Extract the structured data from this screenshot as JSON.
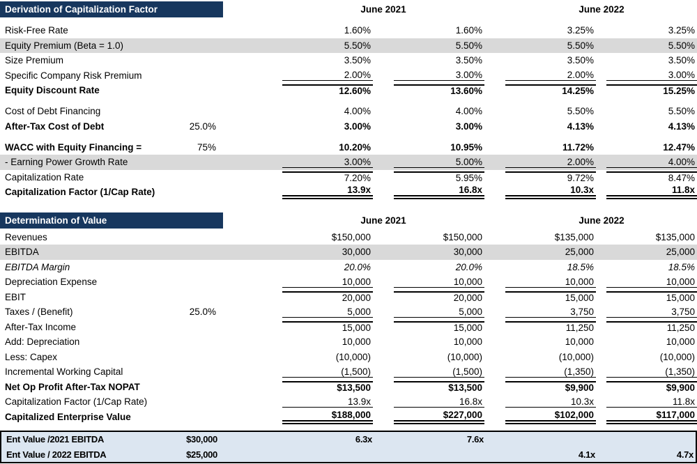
{
  "colors": {
    "title_bar_bg": "#17375E",
    "title_bar_text": "#FFFFFF",
    "row_shade": "#D9D9D9",
    "summary_bg": "#DCE6F1",
    "summary_border": "#000000",
    "text": "#000000"
  },
  "periods": [
    "June 2021",
    "June 2022"
  ],
  "table1": {
    "title": "Derivation of Capitalization Factor",
    "rows": [
      {
        "label": "Risk-Free Rate",
        "sub": "",
        "values": [
          "1.60%",
          "1.60%",
          "3.25%",
          "3.25%"
        ]
      },
      {
        "label": "Equity Premium (Beta = 1.0)",
        "sub": "",
        "shade": true,
        "values": [
          "5.50%",
          "5.50%",
          "5.50%",
          "5.50%"
        ]
      },
      {
        "label": "Size Premium",
        "sub": "",
        "values": [
          "3.50%",
          "3.50%",
          "3.50%",
          "3.50%"
        ]
      },
      {
        "label": "Specific Company Risk Premium",
        "sub": "",
        "line": "ul",
        "values": [
          "2.00%",
          "3.00%",
          "2.00%",
          "3.00%"
        ]
      },
      {
        "label": "Equity Discount Rate",
        "sub": "",
        "bold": true,
        "line": "tl",
        "values": [
          "12.60%",
          "13.60%",
          "14.25%",
          "15.25%"
        ]
      },
      {
        "gap": true
      },
      {
        "label": "Cost of Debt Financing",
        "sub": "",
        "values": [
          "4.00%",
          "4.00%",
          "5.50%",
          "5.50%"
        ]
      },
      {
        "label": "After-Tax Cost of Debt",
        "sub": "25.0%",
        "bold": true,
        "values": [
          "3.00%",
          "3.00%",
          "4.13%",
          "4.13%"
        ]
      },
      {
        "gap": true
      },
      {
        "label": "WACC with Equity Financing =",
        "sub": "75%",
        "bold": true,
        "values": [
          "10.20%",
          "10.95%",
          "11.72%",
          "12.47%"
        ]
      },
      {
        "label": "- Earning Power Growth Rate",
        "sub": "",
        "shade": true,
        "line": "ul",
        "values": [
          "3.00%",
          "5.00%",
          "2.00%",
          "4.00%"
        ]
      },
      {
        "label": "Capitalization Rate",
        "sub": "",
        "line": "tl",
        "values": [
          "7.20%",
          "5.95%",
          "9.72%",
          "8.47%"
        ]
      },
      {
        "label": "Capitalization Factor (1/Cap Rate)",
        "sub": "",
        "bold": true,
        "line": "dbl",
        "values": [
          "13.9x",
          "16.8x",
          "10.3x",
          "11.8x"
        ]
      }
    ]
  },
  "table2": {
    "title": "Determination of Value",
    "rows": [
      {
        "label": "Revenues",
        "sub": "",
        "values": [
          "$150,000",
          "$150,000",
          "$135,000",
          "$135,000"
        ]
      },
      {
        "label": "EBITDA",
        "sub": "",
        "shade": true,
        "values": [
          "30,000",
          "30,000",
          "25,000",
          "25,000"
        ]
      },
      {
        "label": "EBITDA Margin",
        "sub": "",
        "italic": true,
        "values": [
          "20.0%",
          "20.0%",
          "18.5%",
          "18.5%"
        ]
      },
      {
        "label": "Depreciation Expense",
        "sub": "",
        "line": "ul",
        "values": [
          "10,000",
          "10,000",
          "10,000",
          "10,000"
        ]
      },
      {
        "label": "EBIT",
        "sub": "",
        "line": "tl",
        "values": [
          "20,000",
          "20,000",
          "15,000",
          "15,000"
        ]
      },
      {
        "label": "Taxes / (Benefit)",
        "sub": "25.0%",
        "line": "ul",
        "values": [
          "5,000",
          "5,000",
          "3,750",
          "3,750"
        ]
      },
      {
        "label": "After-Tax Income",
        "sub": "",
        "line": "tl",
        "values": [
          "15,000",
          "15,000",
          "11,250",
          "11,250"
        ]
      },
      {
        "label": "Add: Depreciation",
        "sub": "",
        "values": [
          "10,000",
          "10,000",
          "10,000",
          "10,000"
        ]
      },
      {
        "label": "Less: Capex",
        "sub": "",
        "values": [
          "(10,000)",
          "(10,000)",
          "(10,000)",
          "(10,000)"
        ]
      },
      {
        "label": "Incremental Working Capital",
        "sub": "",
        "line": "ul",
        "values": [
          "(1,500)",
          "(1,500)",
          "(1,350)",
          "(1,350)"
        ]
      },
      {
        "label": "Net Op Profit After-Tax NOPAT",
        "sub": "",
        "bold": true,
        "line": "tl",
        "values": [
          "$13,500",
          "$13,500",
          "$9,900",
          "$9,900"
        ]
      },
      {
        "label": "Capitalization Factor (1/Cap Rate)",
        "sub": "",
        "line": "ul",
        "values": [
          "13.9x",
          "16.8x",
          "10.3x",
          "11.8x"
        ]
      },
      {
        "label": "Capitalized Enterprise Value",
        "sub": "",
        "bold": true,
        "line": "dbl",
        "values": [
          "$188,000",
          "$227,000",
          "$102,000",
          "$117,000"
        ]
      }
    ]
  },
  "summary": {
    "rows": [
      {
        "label": "Ent Value /2021 EBITDA",
        "sub": "$30,000",
        "values": [
          "6.3x",
          "7.6x",
          "",
          ""
        ]
      },
      {
        "label": "Ent Value / 2022 EBITDA",
        "sub": "$25,000",
        "values": [
          "",
          "",
          "4.1x",
          "4.7x"
        ]
      }
    ]
  }
}
